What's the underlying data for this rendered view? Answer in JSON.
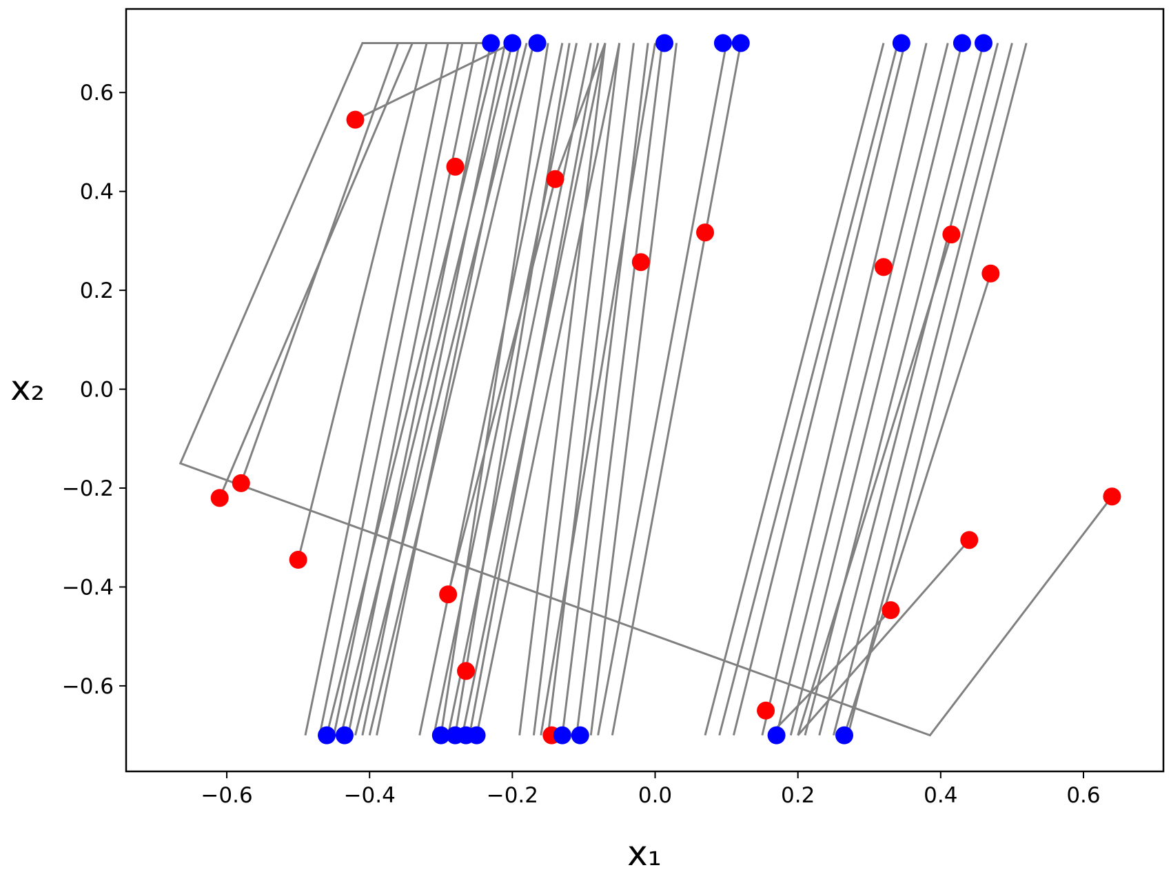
{
  "chart_data": {
    "type": "scatter",
    "xlabel": "x₁",
    "ylabel": "x₂",
    "xlim": [
      -0.741,
      0.712
    ],
    "ylim": [
      -0.773,
      0.769
    ],
    "xticks": [
      {
        "value": -0.6,
        "label": "−0.6"
      },
      {
        "value": -0.4,
        "label": "−0.4"
      },
      {
        "value": -0.2,
        "label": "−0.2"
      },
      {
        "value": 0,
        "label": "0.0"
      },
      0.2,
      0.4,
      0.6
    ],
    "yticks": [
      {
        "value": -0.6,
        "label": "−0.6"
      },
      {
        "value": -0.4,
        "label": "−0.4"
      },
      {
        "value": -0.2,
        "label": "−0.2"
      },
      {
        "value": 0,
        "label": "0.0"
      },
      0.2,
      0.4,
      0.6
    ],
    "line_color": "#808080",
    "lines": [
      {
        "x": [
          0.64,
          0.385,
          -0.665,
          -0.41,
          -0.23
        ],
        "values": [
          -0.217,
          -0.7,
          -0.15,
          0.7,
          0.7
        ]
      },
      {
        "x": [
          -0.42,
          -0.2
        ],
        "values": [
          0.545,
          0.7
        ]
      },
      {
        "x": [
          -0.61,
          -0.34
        ],
        "values": [
          -0.22,
          0.7
        ]
      },
      {
        "x": [
          -0.58,
          -0.36
        ],
        "values": [
          -0.19,
          0.7
        ]
      },
      {
        "x": [
          -0.5,
          -0.32
        ],
        "values": [
          -0.345,
          0.7
        ]
      },
      {
        "x": [
          -0.29,
          -0.14,
          -0.07
        ],
        "values": [
          -0.415,
          0.425,
          0.7
        ]
      },
      {
        "x": [
          0.44,
          0.2
        ],
        "values": [
          -0.305,
          -0.7
        ]
      },
      {
        "x": [
          0.415,
          0.2
        ],
        "values": [
          0.313,
          -0.7
        ]
      },
      {
        "x": [
          0.47,
          0.265
        ],
        "values": [
          0.234,
          -0.7
        ]
      },
      {
        "x": [
          0.33,
          0.16
        ],
        "values": [
          -0.447,
          -0.7
        ]
      },
      {
        "x": [
          -0.49,
          -0.29
        ],
        "values": [
          -0.7,
          0.7
        ]
      },
      {
        "x": [
          -0.47,
          -0.27
        ],
        "values": [
          -0.7,
          0.7
        ]
      },
      {
        "x": [
          -0.45,
          -0.25
        ],
        "values": [
          -0.7,
          0.7
        ]
      },
      {
        "x": [
          -0.43,
          -0.23
        ],
        "values": [
          -0.7,
          0.7
        ]
      },
      {
        "x": [
          -0.41,
          -0.21
        ],
        "values": [
          -0.7,
          0.7
        ]
      },
      {
        "x": [
          -0.39,
          -0.19
        ],
        "values": [
          -0.7,
          0.7
        ]
      },
      {
        "x": [
          -0.46,
          -0.22
        ],
        "values": [
          -0.7,
          0.7
        ]
      },
      {
        "x": [
          -0.44,
          -0.2
        ],
        "values": [
          -0.7,
          0.7
        ]
      },
      {
        "x": [
          -0.42,
          -0.18
        ],
        "values": [
          -0.7,
          0.7
        ]
      },
      {
        "x": [
          -0.4,
          -0.17
        ],
        "values": [
          -0.7,
          0.7
        ]
      },
      {
        "x": [
          -0.33,
          -0.13
        ],
        "values": [
          -0.7,
          0.7
        ]
      },
      {
        "x": [
          -0.31,
          -0.11
        ],
        "values": [
          -0.7,
          0.7
        ]
      },
      {
        "x": [
          -0.29,
          -0.09
        ],
        "values": [
          -0.7,
          0.7
        ]
      },
      {
        "x": [
          -0.27,
          -0.07
        ],
        "values": [
          -0.7,
          0.7
        ]
      },
      {
        "x": [
          -0.25,
          -0.05
        ],
        "values": [
          -0.7,
          0.7
        ]
      },
      {
        "x": [
          -0.3,
          -0.15
        ],
        "values": [
          -0.7,
          0.7
        ]
      },
      {
        "x": [
          -0.28,
          -0.12
        ],
        "values": [
          -0.7,
          0.7
        ]
      },
      {
        "x": [
          -0.26,
          -0.08
        ],
        "values": [
          -0.7,
          0.7
        ]
      },
      {
        "x": [
          -0.19,
          -0.07
        ],
        "values": [
          -0.7,
          0.7
        ]
      },
      {
        "x": [
          -0.17,
          -0.05
        ],
        "values": [
          -0.7,
          0.7
        ]
      },
      {
        "x": [
          -0.15,
          -0.03
        ],
        "values": [
          -0.7,
          0.7
        ]
      },
      {
        "x": [
          -0.13,
          -0.01
        ],
        "values": [
          -0.7,
          0.7
        ]
      },
      {
        "x": [
          -0.11,
          0.01
        ],
        "values": [
          -0.7,
          0.7
        ]
      },
      {
        "x": [
          -0.09,
          0.03
        ],
        "values": [
          -0.7,
          0.7
        ]
      },
      {
        "x": [
          -0.16,
          0.0
        ],
        "values": [
          -0.7,
          0.7
        ]
      },
      {
        "x": [
          -0.08,
          0.1
        ],
        "values": [
          -0.7,
          0.7
        ]
      },
      {
        "x": [
          -0.06,
          0.12
        ],
        "values": [
          -0.7,
          0.7
        ]
      },
      {
        "x": [
          0.07,
          0.32
        ],
        "values": [
          -0.7,
          0.7
        ]
      },
      {
        "x": [
          0.09,
          0.34
        ],
        "values": [
          -0.7,
          0.7
        ]
      },
      {
        "x": [
          0.11,
          0.35
        ],
        "values": [
          -0.7,
          0.7
        ]
      },
      {
        "x": [
          0.15,
          0.38
        ],
        "values": [
          -0.7,
          0.7
        ]
      },
      {
        "x": [
          0.17,
          0.41
        ],
        "values": [
          -0.7,
          0.7
        ]
      },
      {
        "x": [
          0.19,
          0.43
        ],
        "values": [
          -0.7,
          0.7
        ]
      },
      {
        "x": [
          0.21,
          0.46
        ],
        "values": [
          -0.7,
          0.7
        ]
      },
      {
        "x": [
          0.23,
          0.48
        ],
        "values": [
          -0.7,
          0.7
        ]
      },
      {
        "x": [
          0.25,
          0.5
        ],
        "values": [
          -0.7,
          0.7
        ]
      },
      {
        "x": [
          0.27,
          0.52
        ],
        "values": [
          -0.7,
          0.7
        ]
      }
    ],
    "series": [
      {
        "color": "#ff0000",
        "x": [
          -0.42,
          -0.28,
          -0.14,
          -0.02,
          0.07,
          0.32,
          0.415,
          0.47,
          -0.61,
          -0.58,
          -0.5,
          -0.29,
          -0.145,
          0.155,
          0.33,
          0.44,
          0.64,
          -0.265
        ],
        "values": [
          0.545,
          0.45,
          0.425,
          0.257,
          0.317,
          0.247,
          0.313,
          0.234,
          -0.22,
          -0.19,
          -0.345,
          -0.415,
          -0.7,
          -0.65,
          -0.447,
          -0.305,
          -0.217,
          -0.57
        ]
      },
      {
        "color": "#0000ff",
        "x": [
          -0.23,
          -0.2,
          -0.165,
          0.013,
          0.095,
          0.12,
          0.345,
          0.43,
          0.46,
          -0.46,
          -0.435,
          -0.3,
          -0.28,
          -0.265,
          -0.25,
          -0.13,
          -0.105,
          0.17,
          0.265
        ],
        "values": [
          0.7,
          0.7,
          0.7,
          0.7,
          0.7,
          0.7,
          0.7,
          0.7,
          0.7,
          -0.7,
          -0.7,
          -0.7,
          -0.7,
          -0.7,
          -0.7,
          -0.7,
          -0.7,
          -0.7,
          -0.7
        ]
      }
    ]
  }
}
